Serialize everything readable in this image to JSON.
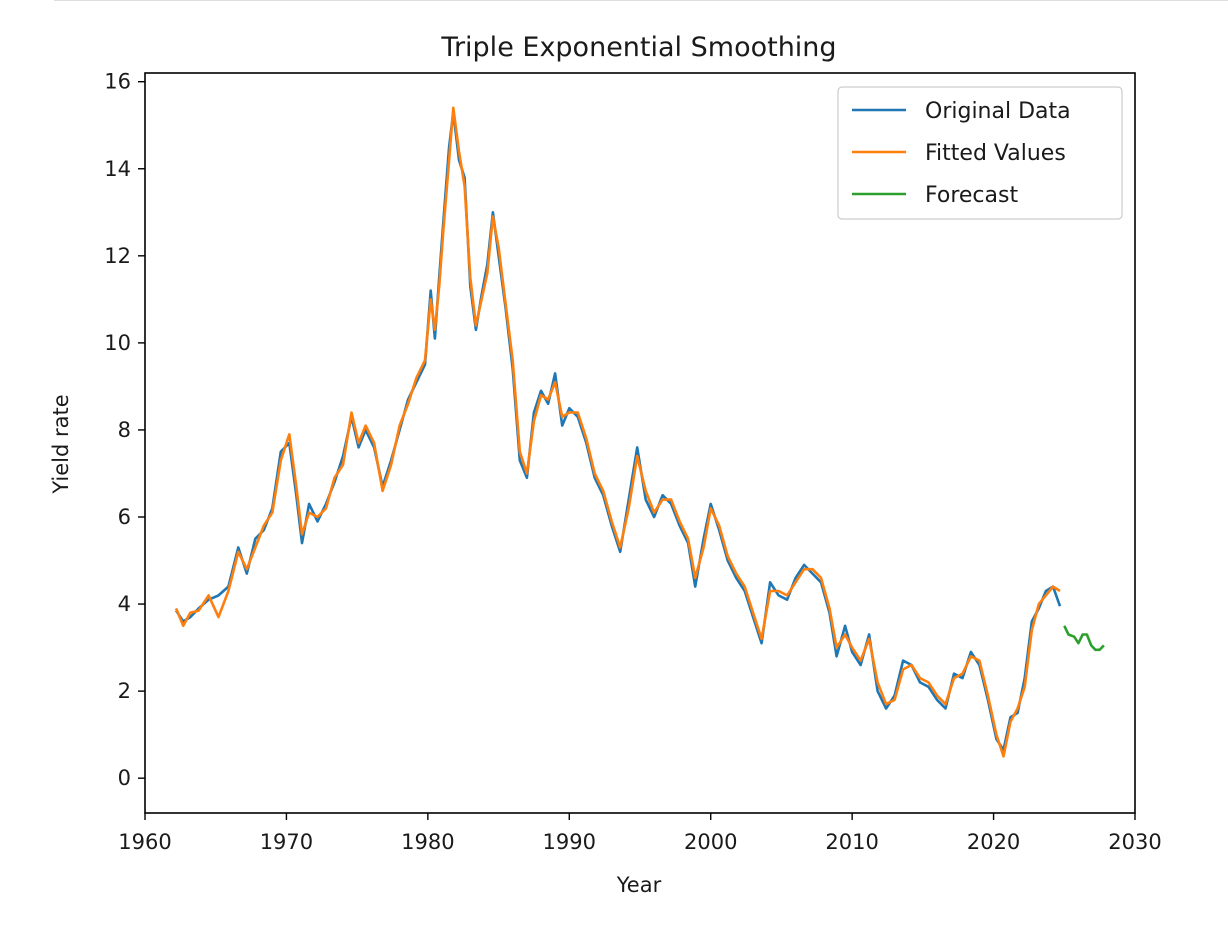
{
  "chart_data": {
    "type": "line",
    "title": "Triple Exponential Smoothing",
    "xlabel": "Year",
    "ylabel": "Yield rate",
    "xlim": [
      1960,
      2030
    ],
    "ylim": [
      -0.8,
      16.2
    ],
    "x_ticks": [
      1960,
      1970,
      1980,
      1990,
      2000,
      2010,
      2020,
      2030
    ],
    "y_ticks": [
      0,
      2,
      4,
      6,
      8,
      10,
      12,
      14,
      16
    ],
    "grid": false,
    "legend_position": "top-right",
    "series": [
      {
        "name": "Original Data",
        "color": "#1f77b4",
        "points": [
          [
            1962.2,
            3.85
          ],
          [
            1962.7,
            3.6
          ],
          [
            1963.2,
            3.7
          ],
          [
            1963.8,
            3.9
          ],
          [
            1964.5,
            4.1
          ],
          [
            1965.2,
            4.2
          ],
          [
            1965.9,
            4.4
          ],
          [
            1966.6,
            5.3
          ],
          [
            1967.2,
            4.7
          ],
          [
            1967.8,
            5.5
          ],
          [
            1968.4,
            5.7
          ],
          [
            1969,
            6.2
          ],
          [
            1969.6,
            7.5
          ],
          [
            1970.2,
            7.7
          ],
          [
            1970.7,
            6.5
          ],
          [
            1971.1,
            5.4
          ],
          [
            1971.6,
            6.3
          ],
          [
            1972.2,
            5.9
          ],
          [
            1972.8,
            6.3
          ],
          [
            1973.4,
            6.8
          ],
          [
            1974,
            7.4
          ],
          [
            1974.6,
            8.3
          ],
          [
            1975.1,
            7.6
          ],
          [
            1975.6,
            8.0
          ],
          [
            1976.2,
            7.6
          ],
          [
            1976.8,
            6.7
          ],
          [
            1977.4,
            7.3
          ],
          [
            1978,
            8.0
          ],
          [
            1978.6,
            8.7
          ],
          [
            1979.2,
            9.1
          ],
          [
            1979.8,
            9.5
          ],
          [
            1980.2,
            11.2
          ],
          [
            1980.5,
            10.1
          ],
          [
            1980.8,
            11.5
          ],
          [
            1981.1,
            12.8
          ],
          [
            1981.5,
            14.5
          ],
          [
            1981.8,
            15.3
          ],
          [
            1982.2,
            14.2
          ],
          [
            1982.6,
            13.8
          ],
          [
            1983,
            11.3
          ],
          [
            1983.4,
            10.3
          ],
          [
            1983.8,
            11.1
          ],
          [
            1984.2,
            11.8
          ],
          [
            1984.6,
            13.0
          ],
          [
            1985,
            12.0
          ],
          [
            1985.5,
            10.8
          ],
          [
            1986,
            9.4
          ],
          [
            1986.5,
            7.3
          ],
          [
            1987,
            6.9
          ],
          [
            1987.5,
            8.4
          ],
          [
            1988,
            8.9
          ],
          [
            1988.5,
            8.6
          ],
          [
            1989,
            9.3
          ],
          [
            1989.5,
            8.1
          ],
          [
            1990,
            8.5
          ],
          [
            1990.6,
            8.3
          ],
          [
            1991.2,
            7.7
          ],
          [
            1991.8,
            6.9
          ],
          [
            1992.4,
            6.5
          ],
          [
            1993,
            5.8
          ],
          [
            1993.6,
            5.2
          ],
          [
            1994.2,
            6.4
          ],
          [
            1994.8,
            7.6
          ],
          [
            1995.4,
            6.4
          ],
          [
            1996,
            6.0
          ],
          [
            1996.6,
            6.5
          ],
          [
            1997.2,
            6.3
          ],
          [
            1997.8,
            5.8
          ],
          [
            1998.4,
            5.4
          ],
          [
            1998.9,
            4.4
          ],
          [
            1999.5,
            5.5
          ],
          [
            2000,
            6.3
          ],
          [
            2000.6,
            5.7
          ],
          [
            2001.2,
            5.0
          ],
          [
            2001.8,
            4.6
          ],
          [
            2002.4,
            4.3
          ],
          [
            2003,
            3.7
          ],
          [
            2003.6,
            3.1
          ],
          [
            2004.2,
            4.5
          ],
          [
            2004.8,
            4.2
          ],
          [
            2005.4,
            4.1
          ],
          [
            2006,
            4.6
          ],
          [
            2006.6,
            4.9
          ],
          [
            2007.2,
            4.7
          ],
          [
            2007.8,
            4.5
          ],
          [
            2008.4,
            3.8
          ],
          [
            2008.9,
            2.8
          ],
          [
            2009.5,
            3.5
          ],
          [
            2010,
            2.9
          ],
          [
            2010.6,
            2.6
          ],
          [
            2011.2,
            3.3
          ],
          [
            2011.8,
            2.0
          ],
          [
            2012.4,
            1.6
          ],
          [
            2013,
            1.9
          ],
          [
            2013.6,
            2.7
          ],
          [
            2014.2,
            2.6
          ],
          [
            2014.8,
            2.2
          ],
          [
            2015.4,
            2.1
          ],
          [
            2016,
            1.8
          ],
          [
            2016.6,
            1.6
          ],
          [
            2017.2,
            2.4
          ],
          [
            2017.8,
            2.3
          ],
          [
            2018.4,
            2.9
          ],
          [
            2019,
            2.6
          ],
          [
            2019.6,
            1.8
          ],
          [
            2020.2,
            0.9
          ],
          [
            2020.7,
            0.65
          ],
          [
            2021.2,
            1.4
          ],
          [
            2021.7,
            1.5
          ],
          [
            2022.2,
            2.3
          ],
          [
            2022.7,
            3.6
          ],
          [
            2023.2,
            3.9
          ],
          [
            2023.7,
            4.3
          ],
          [
            2024.2,
            4.4
          ],
          [
            2024.7,
            3.95
          ]
        ]
      },
      {
        "name": "Fitted Values",
        "color": "#ff7f0e",
        "points": [
          [
            1962.2,
            3.9
          ],
          [
            1962.7,
            3.5
          ],
          [
            1963.2,
            3.8
          ],
          [
            1963.8,
            3.85
          ],
          [
            1964.5,
            4.2
          ],
          [
            1965.2,
            3.7
          ],
          [
            1965.9,
            4.3
          ],
          [
            1966.6,
            5.2
          ],
          [
            1967.2,
            4.8
          ],
          [
            1967.8,
            5.3
          ],
          [
            1968.4,
            5.8
          ],
          [
            1969,
            6.1
          ],
          [
            1969.6,
            7.3
          ],
          [
            1970.2,
            7.9
          ],
          [
            1970.7,
            6.7
          ],
          [
            1971.1,
            5.6
          ],
          [
            1971.6,
            6.1
          ],
          [
            1972.2,
            6.0
          ],
          [
            1972.8,
            6.2
          ],
          [
            1973.4,
            6.9
          ],
          [
            1974,
            7.2
          ],
          [
            1974.6,
            8.4
          ],
          [
            1975.1,
            7.7
          ],
          [
            1975.6,
            8.1
          ],
          [
            1976.2,
            7.7
          ],
          [
            1976.8,
            6.6
          ],
          [
            1977.4,
            7.2
          ],
          [
            1978,
            8.1
          ],
          [
            1978.6,
            8.6
          ],
          [
            1979.2,
            9.2
          ],
          [
            1979.8,
            9.6
          ],
          [
            1980.2,
            11.0
          ],
          [
            1980.5,
            10.3
          ],
          [
            1980.8,
            11.3
          ],
          [
            1981.1,
            12.6
          ],
          [
            1981.5,
            14.2
          ],
          [
            1981.8,
            15.4
          ],
          [
            1982.2,
            14.4
          ],
          [
            1982.6,
            13.6
          ],
          [
            1983,
            11.5
          ],
          [
            1983.4,
            10.4
          ],
          [
            1983.8,
            11.0
          ],
          [
            1984.2,
            11.6
          ],
          [
            1984.6,
            12.9
          ],
          [
            1985,
            12.2
          ],
          [
            1985.5,
            10.9
          ],
          [
            1986,
            9.6
          ],
          [
            1986.5,
            7.5
          ],
          [
            1987,
            7.0
          ],
          [
            1987.5,
            8.2
          ],
          [
            1988,
            8.8
          ],
          [
            1988.5,
            8.7
          ],
          [
            1989,
            9.1
          ],
          [
            1989.5,
            8.3
          ],
          [
            1990,
            8.4
          ],
          [
            1990.6,
            8.4
          ],
          [
            1991.2,
            7.8
          ],
          [
            1991.8,
            7.0
          ],
          [
            1992.4,
            6.6
          ],
          [
            1993,
            5.9
          ],
          [
            1993.6,
            5.3
          ],
          [
            1994.2,
            6.2
          ],
          [
            1994.8,
            7.4
          ],
          [
            1995.4,
            6.6
          ],
          [
            1996,
            6.1
          ],
          [
            1996.6,
            6.4
          ],
          [
            1997.2,
            6.4
          ],
          [
            1997.8,
            5.9
          ],
          [
            1998.4,
            5.5
          ],
          [
            1998.9,
            4.6
          ],
          [
            1999.5,
            5.3
          ],
          [
            2000,
            6.2
          ],
          [
            2000.6,
            5.8
          ],
          [
            2001.2,
            5.1
          ],
          [
            2001.8,
            4.7
          ],
          [
            2002.4,
            4.4
          ],
          [
            2003,
            3.8
          ],
          [
            2003.6,
            3.2
          ],
          [
            2004.2,
            4.3
          ],
          [
            2004.8,
            4.3
          ],
          [
            2005.4,
            4.2
          ],
          [
            2006,
            4.5
          ],
          [
            2006.6,
            4.8
          ],
          [
            2007.2,
            4.8
          ],
          [
            2007.8,
            4.6
          ],
          [
            2008.4,
            3.9
          ],
          [
            2008.9,
            3.0
          ],
          [
            2009.5,
            3.3
          ],
          [
            2010,
            3.0
          ],
          [
            2010.6,
            2.7
          ],
          [
            2011.2,
            3.2
          ],
          [
            2011.8,
            2.2
          ],
          [
            2012.4,
            1.7
          ],
          [
            2013,
            1.8
          ],
          [
            2013.6,
            2.5
          ],
          [
            2014.2,
            2.6
          ],
          [
            2014.8,
            2.3
          ],
          [
            2015.4,
            2.2
          ],
          [
            2016,
            1.9
          ],
          [
            2016.6,
            1.7
          ],
          [
            2017.2,
            2.3
          ],
          [
            2017.8,
            2.4
          ],
          [
            2018.4,
            2.8
          ],
          [
            2019,
            2.7
          ],
          [
            2019.6,
            1.9
          ],
          [
            2020.2,
            1.0
          ],
          [
            2020.7,
            0.5
          ],
          [
            2021.2,
            1.3
          ],
          [
            2021.7,
            1.6
          ],
          [
            2022.2,
            2.1
          ],
          [
            2022.7,
            3.4
          ],
          [
            2023.2,
            4.0
          ],
          [
            2023.7,
            4.2
          ],
          [
            2024.2,
            4.4
          ],
          [
            2024.7,
            4.3
          ]
        ]
      },
      {
        "name": "Forecast",
        "color": "#2ca02c",
        "points": [
          [
            2025.0,
            3.5
          ],
          [
            2025.3,
            3.3
          ],
          [
            2025.7,
            3.25
          ],
          [
            2026.0,
            3.1
          ],
          [
            2026.3,
            3.3
          ],
          [
            2026.6,
            3.3
          ],
          [
            2026.9,
            3.05
          ],
          [
            2027.2,
            2.95
          ],
          [
            2027.5,
            2.95
          ],
          [
            2027.8,
            3.05
          ]
        ]
      }
    ]
  }
}
